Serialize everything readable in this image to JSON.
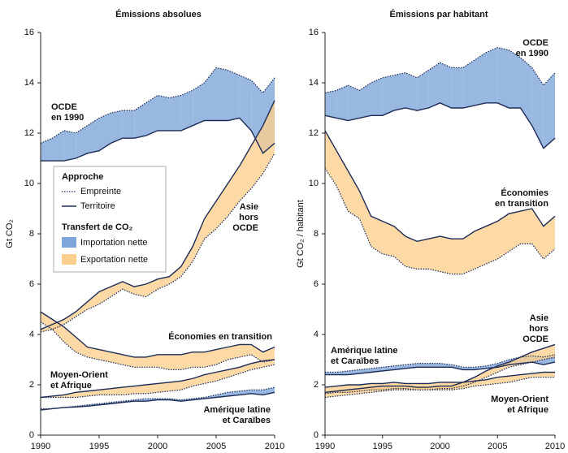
{
  "chart_data": [
    {
      "type": "band",
      "title": "Émissions absolues",
      "y_label": "Gt CO₂",
      "x": [
        1990,
        1991,
        1992,
        1993,
        1994,
        1995,
        1996,
        1997,
        1998,
        1999,
        2000,
        2001,
        2002,
        2003,
        2004,
        2005,
        2006,
        2007,
        2008,
        2009,
        2010
      ],
      "xlim": [
        1990,
        2010
      ],
      "xticks": [
        1990,
        1995,
        2000,
        2005,
        2010
      ],
      "ylim": [
        0,
        16
      ],
      "yticks": [
        0,
        2,
        4,
        6,
        8,
        10,
        12,
        14,
        16
      ],
      "legend": {
        "approach_title": "Approche",
        "footprint": "Empreinte",
        "territory": "Territoire",
        "transfer_title": "Transfert de CO₂",
        "import": {
          "name": "Importation nette",
          "color": "#7ea6da"
        },
        "export": {
          "name": "Exportation nette",
          "color": "#fbd08f"
        },
        "line_color": "#1d2b57"
      },
      "regions": [
        {
          "label": [
            "OCDE",
            "en 1990"
          ],
          "footprint": [
            11.6,
            11.8,
            12.1,
            12.0,
            12.3,
            12.6,
            12.8,
            12.9,
            12.9,
            13.2,
            13.5,
            13.4,
            13.5,
            13.7,
            14.0,
            14.6,
            14.5,
            14.3,
            14.1,
            13.6,
            14.2
          ],
          "territory": [
            10.9,
            10.9,
            10.9,
            11.0,
            11.2,
            11.3,
            11.6,
            11.8,
            11.8,
            11.9,
            12.1,
            12.1,
            12.1,
            12.3,
            12.5,
            12.5,
            12.5,
            12.6,
            12.1,
            11.2,
            11.6
          ]
        },
        {
          "label": [
            "Asie",
            "hors",
            "OCDE"
          ],
          "footprint": [
            4.1,
            4.2,
            4.4,
            4.7,
            5.0,
            5.2,
            5.5,
            5.8,
            5.6,
            5.5,
            5.8,
            6.0,
            6.3,
            6.9,
            7.8,
            8.2,
            8.7,
            9.3,
            9.8,
            10.4,
            11.2
          ],
          "territory": [
            4.2,
            4.4,
            4.6,
            4.9,
            5.3,
            5.7,
            5.9,
            6.1,
            5.9,
            6.0,
            6.2,
            6.3,
            6.7,
            7.5,
            8.6,
            9.3,
            10.0,
            10.7,
            11.5,
            12.3,
            13.3
          ]
        },
        {
          "label": [
            "Économies en transition"
          ],
          "footprint": [
            4.5,
            4.2,
            3.7,
            3.3,
            3.1,
            3.0,
            2.9,
            2.8,
            2.7,
            2.7,
            2.7,
            2.6,
            2.6,
            2.7,
            2.7,
            2.8,
            3.0,
            3.1,
            3.2,
            2.9,
            3.0
          ],
          "territory": [
            4.9,
            4.6,
            4.3,
            3.9,
            3.5,
            3.4,
            3.3,
            3.2,
            3.1,
            3.1,
            3.2,
            3.2,
            3.2,
            3.3,
            3.3,
            3.4,
            3.5,
            3.6,
            3.6,
            3.3,
            3.5
          ]
        },
        {
          "label": [
            "Moyen-Orient",
            "et Afrique"
          ],
          "footprint": [
            1.5,
            1.5,
            1.5,
            1.5,
            1.55,
            1.6,
            1.6,
            1.6,
            1.65,
            1.65,
            1.7,
            1.75,
            1.8,
            1.95,
            2.05,
            2.15,
            2.3,
            2.45,
            2.6,
            2.7,
            2.8
          ],
          "territory": [
            1.5,
            1.55,
            1.6,
            1.7,
            1.75,
            1.8,
            1.85,
            1.9,
            1.95,
            2.0,
            2.05,
            2.1,
            2.15,
            2.25,
            2.4,
            2.5,
            2.6,
            2.7,
            2.85,
            2.95,
            3.0
          ]
        },
        {
          "label": [
            "Amérique latine",
            "et Caraïbes"
          ],
          "footprint": [
            1.05,
            1.05,
            1.1,
            1.15,
            1.2,
            1.25,
            1.3,
            1.35,
            1.4,
            1.45,
            1.45,
            1.45,
            1.4,
            1.45,
            1.5,
            1.6,
            1.7,
            1.75,
            1.8,
            1.8,
            1.9
          ],
          "territory": [
            1.0,
            1.05,
            1.1,
            1.12,
            1.15,
            1.2,
            1.25,
            1.3,
            1.35,
            1.35,
            1.4,
            1.4,
            1.35,
            1.4,
            1.45,
            1.5,
            1.55,
            1.6,
            1.65,
            1.6,
            1.7
          ]
        }
      ]
    },
    {
      "type": "band",
      "title": "Émissions par habitant",
      "y_label": "Gt CO₂ / habitant",
      "x": [
        1990,
        1991,
        1992,
        1993,
        1994,
        1995,
        1996,
        1997,
        1998,
        1999,
        2000,
        2001,
        2002,
        2003,
        2004,
        2005,
        2006,
        2007,
        2008,
        2009,
        2010
      ],
      "xlim": [
        1990,
        2010
      ],
      "xticks": [
        1990,
        1995,
        2000,
        2005,
        2010
      ],
      "ylim": [
        0,
        16
      ],
      "yticks": [
        0,
        2,
        4,
        6,
        8,
        10,
        12,
        14,
        16
      ],
      "regions": [
        {
          "label": [
            "OCDE",
            "en 1990"
          ],
          "footprint": [
            13.6,
            13.7,
            13.9,
            13.7,
            14.0,
            14.2,
            14.3,
            14.4,
            14.2,
            14.5,
            14.8,
            14.6,
            14.6,
            14.9,
            15.2,
            15.4,
            15.3,
            15.0,
            14.6,
            13.9,
            14.4
          ],
          "territory": [
            12.7,
            12.6,
            12.5,
            12.6,
            12.7,
            12.7,
            12.9,
            13.0,
            12.9,
            13.0,
            13.2,
            13.0,
            13.0,
            13.1,
            13.2,
            13.2,
            13.0,
            13.0,
            12.3,
            11.4,
            11.8
          ]
        },
        {
          "label": [
            "Économies",
            "en transition"
          ],
          "footprint": [
            10.6,
            9.9,
            8.9,
            8.6,
            7.5,
            7.2,
            7.1,
            6.7,
            6.6,
            6.6,
            6.5,
            6.4,
            6.4,
            6.6,
            6.8,
            7.0,
            7.3,
            7.6,
            7.6,
            7.0,
            7.4
          ],
          "territory": [
            12.1,
            11.3,
            10.5,
            9.7,
            8.7,
            8.5,
            8.3,
            7.9,
            7.7,
            7.8,
            7.9,
            7.8,
            7.8,
            8.1,
            8.3,
            8.5,
            8.8,
            8.9,
            9.0,
            8.3,
            8.7
          ]
        },
        {
          "label": [
            "Amérique latine",
            "et Caraïbes"
          ],
          "footprint": [
            2.5,
            2.5,
            2.55,
            2.6,
            2.65,
            2.7,
            2.75,
            2.8,
            2.85,
            2.85,
            2.85,
            2.8,
            2.7,
            2.7,
            2.75,
            2.85,
            3.0,
            3.1,
            3.15,
            3.1,
            3.2
          ],
          "territory": [
            2.4,
            2.4,
            2.4,
            2.45,
            2.5,
            2.55,
            2.6,
            2.65,
            2.7,
            2.7,
            2.7,
            2.7,
            2.6,
            2.6,
            2.65,
            2.7,
            2.8,
            2.85,
            2.9,
            2.8,
            2.9
          ]
        },
        {
          "label": [
            "Asie",
            "hors",
            "OCDE"
          ],
          "footprint": [
            1.65,
            1.7,
            1.7,
            1.75,
            1.8,
            1.8,
            1.85,
            1.85,
            1.8,
            1.8,
            1.85,
            1.85,
            1.95,
            2.1,
            2.3,
            2.5,
            2.7,
            2.8,
            2.9,
            3.0,
            3.1
          ],
          "territory": [
            1.7,
            1.75,
            1.8,
            1.85,
            1.9,
            1.95,
            1.95,
            1.95,
            1.9,
            1.9,
            1.95,
            1.95,
            2.1,
            2.3,
            2.55,
            2.75,
            2.9,
            3.1,
            3.3,
            3.45,
            3.6
          ]
        },
        {
          "label": [
            "Moyen-Orient",
            "et Afrique"
          ],
          "footprint": [
            1.5,
            1.55,
            1.6,
            1.65,
            1.7,
            1.75,
            1.8,
            1.8,
            1.8,
            1.8,
            1.8,
            1.8,
            1.85,
            1.95,
            2.0,
            2.05,
            2.1,
            2.2,
            2.3,
            2.3,
            2.3
          ],
          "territory": [
            1.9,
            1.95,
            2.0,
            2.0,
            2.05,
            2.05,
            2.1,
            2.05,
            2.05,
            2.05,
            2.1,
            2.1,
            2.1,
            2.15,
            2.2,
            2.3,
            2.35,
            2.4,
            2.45,
            2.5,
            2.5
          ]
        }
      ]
    }
  ]
}
